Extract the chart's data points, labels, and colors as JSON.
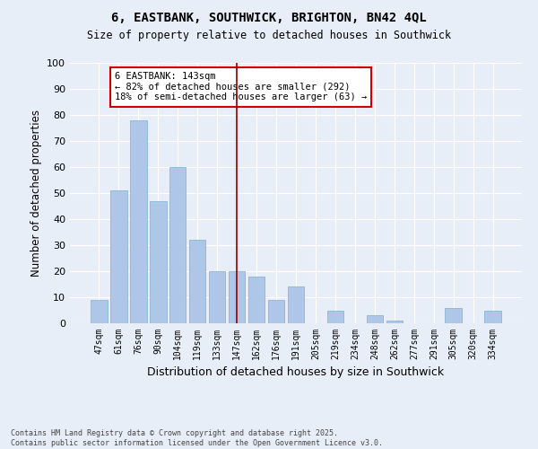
{
  "title": "6, EASTBANK, SOUTHWICK, BRIGHTON, BN42 4QL",
  "subtitle": "Size of property relative to detached houses in Southwick",
  "xlabel": "Distribution of detached houses by size in Southwick",
  "ylabel": "Number of detached properties",
  "categories": [
    "47sqm",
    "61sqm",
    "76sqm",
    "90sqm",
    "104sqm",
    "119sqm",
    "133sqm",
    "147sqm",
    "162sqm",
    "176sqm",
    "191sqm",
    "205sqm",
    "219sqm",
    "234sqm",
    "248sqm",
    "262sqm",
    "277sqm",
    "291sqm",
    "305sqm",
    "320sqm",
    "334sqm"
  ],
  "values": [
    9,
    51,
    78,
    47,
    60,
    32,
    20,
    20,
    18,
    9,
    14,
    0,
    5,
    0,
    3,
    1,
    0,
    0,
    6,
    0,
    5
  ],
  "bar_color": "#aec6e8",
  "bar_edge_color": "#7bafd4",
  "vline_color": "#8b0000",
  "vline_x": 7,
  "annotation_text": "6 EASTBANK: 143sqm\n← 82% of detached houses are smaller (292)\n18% of semi-detached houses are larger (63) →",
  "annotation_box_color": "#ffffff",
  "annotation_box_edge_color": "#cc0000",
  "ylim": [
    0,
    100
  ],
  "yticks": [
    0,
    10,
    20,
    30,
    40,
    50,
    60,
    70,
    80,
    90,
    100
  ],
  "bg_color": "#e8eef7",
  "plot_bg_color": "#e8eef7",
  "grid_color": "#ffffff",
  "footer_line1": "Contains HM Land Registry data © Crown copyright and database right 2025.",
  "footer_line2": "Contains public sector information licensed under the Open Government Licence v3.0."
}
